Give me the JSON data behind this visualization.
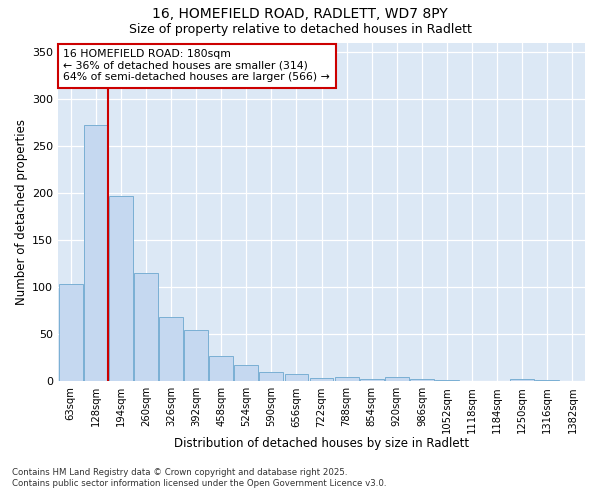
{
  "title1": "16, HOMEFIELD ROAD, RADLETT, WD7 8PY",
  "title2": "Size of property relative to detached houses in Radlett",
  "xlabel": "Distribution of detached houses by size in Radlett",
  "ylabel": "Number of detached properties",
  "categories": [
    "63sqm",
    "128sqm",
    "194sqm",
    "260sqm",
    "326sqm",
    "392sqm",
    "458sqm",
    "524sqm",
    "590sqm",
    "656sqm",
    "722sqm",
    "788sqm",
    "854sqm",
    "920sqm",
    "986sqm",
    "1052sqm",
    "1118sqm",
    "1184sqm",
    "1250sqm",
    "1316sqm",
    "1382sqm"
  ],
  "values": [
    103,
    272,
    197,
    115,
    68,
    55,
    27,
    17,
    10,
    8,
    4,
    5,
    3,
    5,
    2,
    1,
    0,
    0,
    3,
    1,
    0
  ],
  "bar_color": "#c5d8f0",
  "bar_edge_color": "#7aafd4",
  "vline_color": "#cc0000",
  "vline_x_index": 1.5,
  "annotation_title": "16 HOMEFIELD ROAD: 180sqm",
  "annotation_line1": "← 36% of detached houses are smaller (314)",
  "annotation_line2": "64% of semi-detached houses are larger (566) →",
  "annotation_box_color": "#ffffff",
  "annotation_box_edge": "#cc0000",
  "ylim": [
    0,
    360
  ],
  "yticks": [
    0,
    50,
    100,
    150,
    200,
    250,
    300,
    350
  ],
  "fig_bg_color": "#ffffff",
  "ax_bg_color": "#dce8f5",
  "footnote1": "Contains HM Land Registry data © Crown copyright and database right 2025.",
  "footnote2": "Contains public sector information licensed under the Open Government Licence v3.0."
}
